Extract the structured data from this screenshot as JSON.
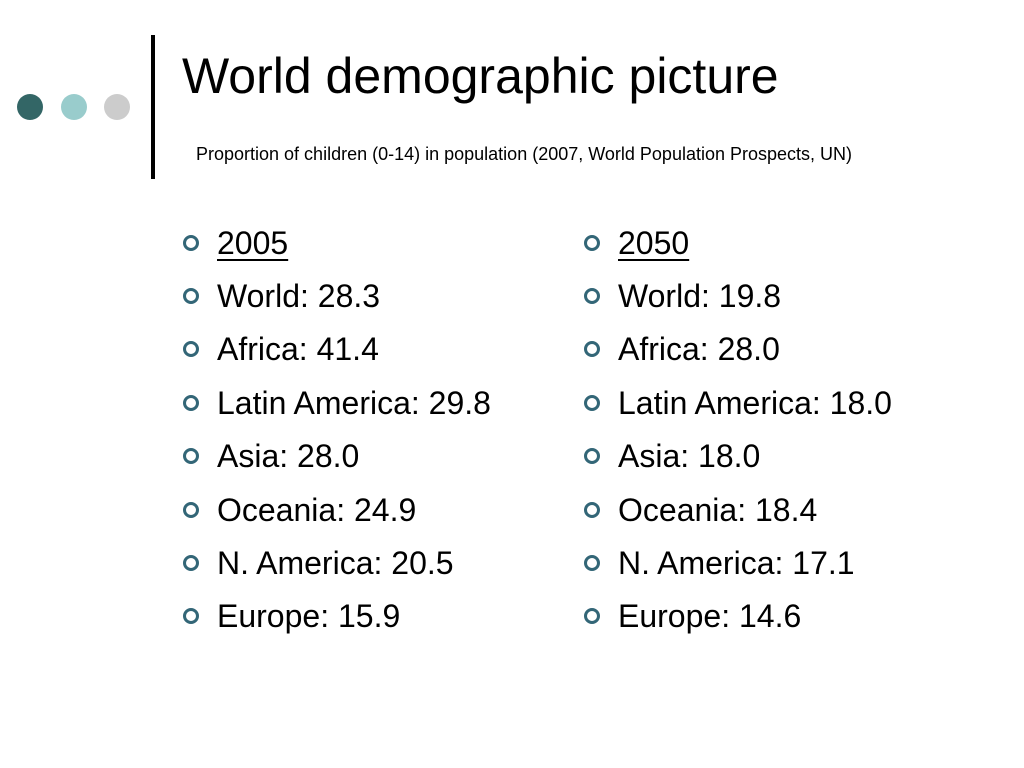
{
  "colors": {
    "dot_dark": "#336666",
    "dot_light": "#99cccc",
    "dot_gray": "#cccccc",
    "bullet": "#336677"
  },
  "title": "World demographic picture",
  "subtitle": "Proportion of children (0-14) in population (2007, World Population Prospects, UN)",
  "columns": [
    {
      "heading": "2005",
      "items": [
        "World: 28.3",
        "Africa: 41.4",
        "Latin America: 29.8",
        "Asia: 28.0",
        "Oceania: 24.9",
        "N. America: 20.5",
        "Europe: 15.9"
      ]
    },
    {
      "heading": "2050",
      "items": [
        "World: 19.8",
        "Africa: 28.0",
        "Latin America: 18.0",
        "Asia: 18.0",
        "Oceania: 18.4",
        "N. America: 17.1",
        "Europe: 14.6"
      ]
    }
  ]
}
